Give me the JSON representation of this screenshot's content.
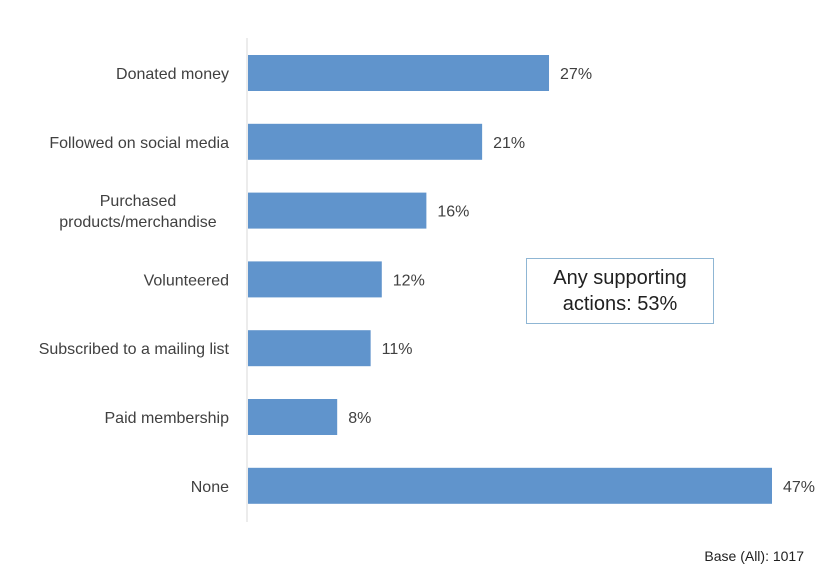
{
  "chart_data": {
    "type": "bar",
    "orientation": "horizontal",
    "categories": [
      [
        "Donated money"
      ],
      [
        "Followed on social media"
      ],
      [
        "Purchased",
        "products/merchandise"
      ],
      [
        "Volunteered"
      ],
      [
        "Subscribed to a mailing list"
      ],
      [
        "Paid membership"
      ],
      [
        "None"
      ]
    ],
    "values": [
      27,
      21,
      16,
      12,
      11,
      8,
      47
    ],
    "value_labels": [
      "27%",
      "21%",
      "16%",
      "12%",
      "11%",
      "8%",
      "47%"
    ],
    "xlim": [
      0,
      47
    ],
    "grid": false,
    "bar_color": "#6094cc"
  },
  "callout": {
    "text": "Any supporting actions: 53%",
    "border_color": "#8fb6d4"
  },
  "footnote": "Base (All): 1017"
}
